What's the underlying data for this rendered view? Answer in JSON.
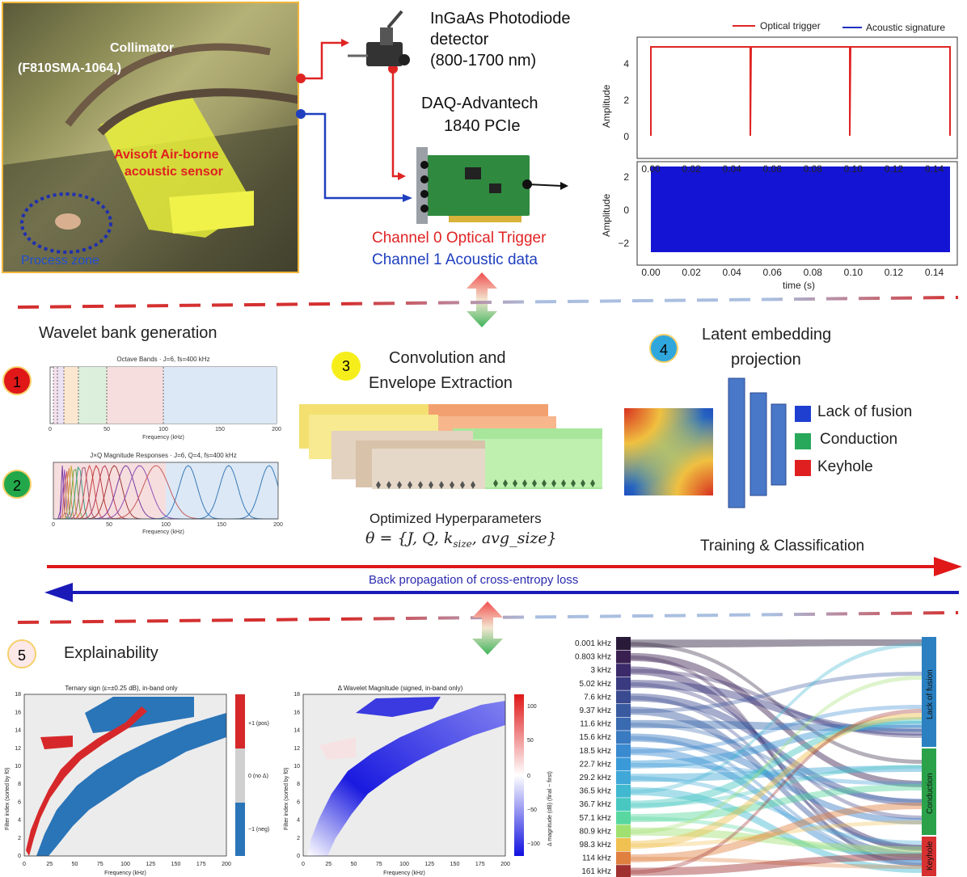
{
  "photo": {
    "collimator": "Collimator",
    "collimator_model": "(F810SMA-1064,)",
    "sensor_line1": "Avisoft Air-borne",
    "sensor_line2": "acoustic sensor",
    "process_zone": "Process zone"
  },
  "hardware": {
    "detector_line1": "InGaAs Photodiode",
    "detector_line2": "detector",
    "detector_line3": "(800-1700 nm)",
    "daq_line1": "DAQ-Advantech",
    "daq_line2": "1840 PCIe",
    "channel0": "Channel 0 Optical Trigger",
    "channel1": "Channel 1 Acoustic data",
    "colors": {
      "trigger": "#e02424",
      "acoustic": "#1f3fbf"
    }
  },
  "signal_plot": {
    "legend": [
      "Optical trigger",
      "Acoustic signature"
    ],
    "ylabel": "Amplitude",
    "xlabel": "time (s)",
    "xticks": [
      "0.00",
      "0.02",
      "0.04",
      "0.06",
      "0.08",
      "0.10",
      "0.12",
      "0.14"
    ],
    "top_yticks": [
      "4",
      "2",
      "0"
    ],
    "bottom_yticks": [
      "2",
      "0",
      "−2"
    ]
  },
  "steps": {
    "s1": {
      "num": "1",
      "title": "Wavelet bank generation"
    },
    "s2": {
      "num": "2"
    },
    "s3": {
      "num": "3",
      "title_line1": "Convolution and",
      "title_line2": "Envelope Extraction"
    },
    "s4": {
      "num": "4",
      "title_line1": "Latent embedding",
      "title_line2": "projection"
    },
    "s5": {
      "num": "5",
      "title": "Explainability"
    }
  },
  "octave_plot": {
    "title": "Octave Bands · J=6, fs=400 kHz",
    "xlabel": "Frequency (kHz)",
    "xticks": [
      "0",
      "50",
      "100",
      "150",
      "200"
    ]
  },
  "jq_plot": {
    "title": "J×Q Magnitude Responses · J=6, Q=4, fs=400 kHz",
    "xlabel": "Frequency (kHz)",
    "xticks": [
      "0",
      "50",
      "100",
      "150",
      "200"
    ]
  },
  "hyper": {
    "label": "Optimized Hyperparameters",
    "formula": "θ = {J, Q, k",
    "formula_sub": "size",
    "formula_tail": ", avg_size}"
  },
  "classes": {
    "lack": "Lack of fusion",
    "conduction": "Conduction",
    "keyhole": "Keyhole",
    "colors": {
      "lack": "#1f3fd1",
      "conduction": "#27a85a",
      "keyhole": "#e02020"
    }
  },
  "training": {
    "forward": "Training & Classification",
    "backward": "Back propagation of cross-entropy loss"
  },
  "ternary_plot": {
    "title": "Ternary sign (ε=±0.25 dB), in-band only",
    "xlabel": "Frequency (kHz)",
    "ylabel": "Filter index (sorted by f0)",
    "xticks": [
      "0",
      "25",
      "50",
      "75",
      "100",
      "125",
      "150",
      "175",
      "200"
    ],
    "yticks": [
      "0",
      "2",
      "4",
      "6",
      "8",
      "10",
      "12",
      "14",
      "16",
      "18"
    ],
    "cbar": [
      "+1 (pos)",
      "0 (no Δ)",
      "−1 (neg)"
    ]
  },
  "delta_plot": {
    "title": "Δ Wavelet Magnitude (signed, in-band only)",
    "xlabel": "Frequency (kHz)",
    "ylabel": "Filter index (sorted by f0)",
    "xticks": [
      "0",
      "25",
      "50",
      "75",
      "100",
      "125",
      "150",
      "175",
      "200"
    ],
    "yticks": [
      "0",
      "2",
      "4",
      "6",
      "8",
      "10",
      "12",
      "14",
      "16",
      "18"
    ],
    "cbar_label": "Δ magnitude (dB) (final − first)",
    "cbar_ticks": [
      "100",
      "50",
      "0",
      "−50",
      "−100"
    ]
  },
  "sankey": {
    "freqs": [
      "0.001 kHz",
      "0.803 kHz",
      "3 kHz",
      "5.02 kHz",
      "7.6 kHz",
      "9.37 kHz",
      "11.6 kHz",
      "15.6 kHz",
      "18.5 kHz",
      "22.7 kHz",
      "29.2 kHz",
      "36.5 kHz",
      "36.7 kHz",
      "57.1 kHz",
      "80.9 kHz",
      "98.3 kHz",
      "114 kHz",
      "161 kHz"
    ],
    "targets": [
      "Lack of fusion",
      "Conduction",
      "Keyhole"
    ]
  }
}
